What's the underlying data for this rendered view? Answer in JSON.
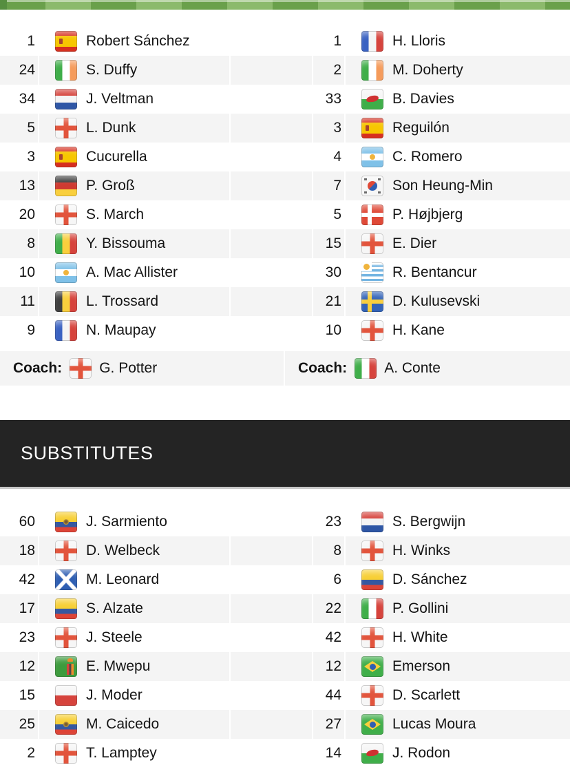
{
  "colors": {
    "pitch_dark_green": "#6aa04b",
    "pitch_light_green": "#8cba6c",
    "pitch_left_block": "#568e40",
    "row_stripe_gray": "#f4f4f4",
    "subs_header_bg": "#242424",
    "subs_header_text": "#ffffff"
  },
  "lineup": {
    "home": {
      "players": [
        {
          "number": "1",
          "name": "Robert Sánchez",
          "country": "Spain",
          "flag": "es"
        },
        {
          "number": "24",
          "name": "S. Duffy",
          "country": "Ireland",
          "flag": "ie"
        },
        {
          "number": "34",
          "name": "J. Veltman",
          "country": "Netherlands",
          "flag": "nl"
        },
        {
          "number": "5",
          "name": "L. Dunk",
          "country": "England",
          "flag": "eng"
        },
        {
          "number": "3",
          "name": "Cucurella",
          "country": "Spain",
          "flag": "es"
        },
        {
          "number": "13",
          "name": "P. Groß",
          "country": "Germany",
          "flag": "de"
        },
        {
          "number": "20",
          "name": "S. March",
          "country": "England",
          "flag": "eng"
        },
        {
          "number": "8",
          "name": "Y. Bissouma",
          "country": "Mali",
          "flag": "ml"
        },
        {
          "number": "10",
          "name": "A. Mac Allister",
          "country": "Argentina",
          "flag": "ar"
        },
        {
          "number": "11",
          "name": "L. Trossard",
          "country": "Belgium",
          "flag": "be"
        },
        {
          "number": "9",
          "name": "N. Maupay",
          "country": "France",
          "flag": "fr"
        }
      ],
      "coach": {
        "label": "Coach:",
        "name": "G. Potter",
        "country": "England",
        "flag": "eng"
      }
    },
    "away": {
      "players": [
        {
          "number": "1",
          "name": "H. Lloris",
          "country": "France",
          "flag": "fr"
        },
        {
          "number": "2",
          "name": "M. Doherty",
          "country": "Ireland",
          "flag": "ie"
        },
        {
          "number": "33",
          "name": "B. Davies",
          "country": "Wales",
          "flag": "wls"
        },
        {
          "number": "3",
          "name": "Reguilón",
          "country": "Spain",
          "flag": "es"
        },
        {
          "number": "4",
          "name": "C. Romero",
          "country": "Argentina",
          "flag": "ar"
        },
        {
          "number": "7",
          "name": "Son Heung-Min",
          "country": "South Korea",
          "flag": "kr"
        },
        {
          "number": "5",
          "name": "P. Højbjerg",
          "country": "Denmark",
          "flag": "dk"
        },
        {
          "number": "15",
          "name": "E. Dier",
          "country": "England",
          "flag": "eng"
        },
        {
          "number": "30",
          "name": "R. Bentancur",
          "country": "Uruguay",
          "flag": "uy"
        },
        {
          "number": "21",
          "name": "D. Kulusevski",
          "country": "Sweden",
          "flag": "se"
        },
        {
          "number": "10",
          "name": "H. Kane",
          "country": "England",
          "flag": "eng"
        }
      ],
      "coach": {
        "label": "Coach:",
        "name": "A. Conte",
        "country": "Italy",
        "flag": "it"
      }
    }
  },
  "substitutes": {
    "title": "SUBSTITUTES",
    "home": [
      {
        "number": "60",
        "name": "J. Sarmiento",
        "country": "Ecuador",
        "flag": "ec"
      },
      {
        "number": "18",
        "name": "D. Welbeck",
        "country": "England",
        "flag": "eng"
      },
      {
        "number": "42",
        "name": "M. Leonard",
        "country": "Scotland",
        "flag": "sct"
      },
      {
        "number": "17",
        "name": "S. Alzate",
        "country": "Colombia",
        "flag": "co"
      },
      {
        "number": "23",
        "name": "J. Steele",
        "country": "England",
        "flag": "eng"
      },
      {
        "number": "12",
        "name": "E. Mwepu",
        "country": "Zambia",
        "flag": "zm"
      },
      {
        "number": "15",
        "name": "J. Moder",
        "country": "Poland",
        "flag": "pl"
      },
      {
        "number": "25",
        "name": "M. Caicedo",
        "country": "Ecuador",
        "flag": "ec"
      },
      {
        "number": "2",
        "name": "T. Lamptey",
        "country": "England",
        "flag": "eng"
      }
    ],
    "away": [
      {
        "number": "23",
        "name": "S. Bergwijn",
        "country": "Netherlands",
        "flag": "nl"
      },
      {
        "number": "8",
        "name": "H. Winks",
        "country": "England",
        "flag": "eng"
      },
      {
        "number": "6",
        "name": "D. Sánchez",
        "country": "Colombia",
        "flag": "co"
      },
      {
        "number": "22",
        "name": "P. Gollini",
        "country": "Italy",
        "flag": "it"
      },
      {
        "number": "42",
        "name": "H. White",
        "country": "England",
        "flag": "eng"
      },
      {
        "number": "12",
        "name": "Emerson",
        "country": "Brazil",
        "flag": "br"
      },
      {
        "number": "44",
        "name": "D. Scarlett",
        "country": "England",
        "flag": "eng"
      },
      {
        "number": "27",
        "name": "Lucas Moura",
        "country": "Brazil",
        "flag": "br"
      },
      {
        "number": "14",
        "name": "J. Rodon",
        "country": "Wales",
        "flag": "wls"
      }
    ]
  }
}
